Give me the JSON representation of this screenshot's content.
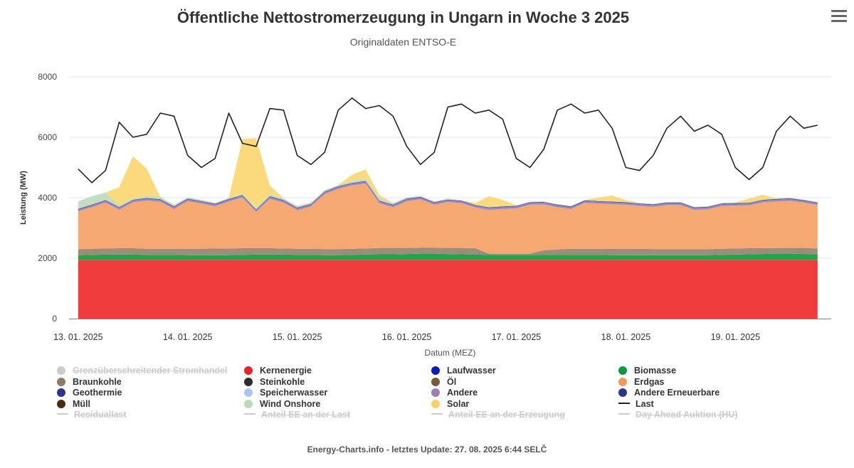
{
  "header": {
    "title": "Öffentliche Nettostromerzeugung in Ungarn in Woche 3 2025",
    "subtitle": "Originaldaten ENTSO-E"
  },
  "footer": {
    "text": "Energy-Charts.info - letztes Update: 27. 08. 2025 6:44 SELČ"
  },
  "legend": [
    {
      "label": "Grenzüberschreitender Stromhandel",
      "color": "#c8c8c8",
      "marker": "dot",
      "enabled": false
    },
    {
      "label": "Kernenergie",
      "color": "#e8242a",
      "marker": "dot",
      "enabled": true
    },
    {
      "label": "Laufwasser",
      "color": "#0a1bb8",
      "marker": "dot",
      "enabled": true
    },
    {
      "label": "Biomasse",
      "color": "#0b9a3a",
      "marker": "dot",
      "enabled": true
    },
    {
      "label": "Braunkohle",
      "color": "#8e7a66",
      "marker": "dot",
      "enabled": true
    },
    {
      "label": "Steinkohle",
      "color": "#2b2b2b",
      "marker": "dot",
      "enabled": true
    },
    {
      "label": "Öl",
      "color": "#7a5a3c",
      "marker": "dot",
      "enabled": true
    },
    {
      "label": "Erdgas",
      "color": "#f29a5c",
      "marker": "dot",
      "enabled": true
    },
    {
      "label": "Geothermie",
      "color": "#2c3588",
      "marker": "dot",
      "enabled": true
    },
    {
      "label": "Speicherwasser",
      "color": "#a9c4f5",
      "marker": "dot",
      "enabled": true
    },
    {
      "label": "Andere",
      "color": "#9a7fb0",
      "marker": "dot",
      "enabled": true
    },
    {
      "label": "Andere Erneuerbare",
      "color": "#2c3588",
      "marker": "dot",
      "enabled": true
    },
    {
      "label": "Müll",
      "color": "#4a2c10",
      "marker": "dot",
      "enabled": true
    },
    {
      "label": "Wind Onshore",
      "color": "#bcd9b8",
      "marker": "dot",
      "enabled": true
    },
    {
      "label": "Solar",
      "color": "#f7cf6b",
      "marker": "dot",
      "enabled": true
    },
    {
      "label": "Last",
      "color": "#222222",
      "marker": "line",
      "enabled": true
    },
    {
      "label": "Residuallast",
      "color": "#cccccc",
      "marker": "line",
      "enabled": false
    },
    {
      "label": "Anteil EE an der Last",
      "color": "#cccccc",
      "marker": "line",
      "enabled": false
    },
    {
      "label": "Anteil EE an der Erzeugung",
      "color": "#cccccc",
      "marker": "line",
      "enabled": false
    },
    {
      "label": "Day Ahead Auktion (HU)",
      "color": "#cccccc",
      "marker": "line",
      "enabled": false
    }
  ],
  "chart_data": {
    "type": "area",
    "title": "Öffentliche Nettostromerzeugung in Ungarn in Woche 3 2025",
    "subtitle": "Originaldaten ENTSO-E",
    "xlabel": "Datum (MEZ)",
    "ylabel": "Leistung (MW)",
    "ylim": [
      0,
      8000
    ],
    "yticks": [
      0,
      2000,
      4000,
      6000,
      8000
    ],
    "xticks": [
      "13. 01. 2025",
      "14. 01. 2025",
      "15. 01. 2025",
      "16. 01. 2025",
      "17. 01. 2025",
      "18. 01. 2025",
      "19. 01. 2025"
    ],
    "x_hours": [
      0,
      3,
      6,
      9,
      12,
      15,
      18,
      21,
      24,
      27,
      30,
      33,
      36,
      39,
      42,
      45,
      48,
      51,
      54,
      57,
      60,
      63,
      66,
      69,
      72,
      75,
      78,
      81,
      84,
      87,
      90,
      93,
      96,
      99,
      102,
      105,
      108,
      111,
      114,
      117,
      120,
      123,
      126,
      129,
      132,
      135,
      138,
      141,
      144,
      147,
      150,
      153,
      156,
      159,
      162
    ],
    "x_unit": "Stunden ab 13. 01. 2025 00:00",
    "grid": true,
    "series": [
      {
        "name": "Kernenergie",
        "color": "#f03c3c",
        "stack": true,
        "values": [
          1950,
          1950,
          1950,
          1950,
          1950,
          1950,
          1950,
          1950,
          1950,
          1950,
          1950,
          1950,
          1950,
          1950,
          1950,
          1950,
          1950,
          1950,
          1950,
          1950,
          1950,
          1950,
          1950,
          1950,
          1950,
          1950,
          1950,
          1950,
          1950,
          1950,
          1950,
          1950,
          1950,
          1950,
          1950,
          1950,
          1950,
          1950,
          1950,
          1950,
          1950,
          1950,
          1950,
          1950,
          1950,
          1950,
          1950,
          1950,
          1950,
          1950,
          1950,
          1950,
          1950,
          1950,
          1950
        ]
      },
      {
        "name": "Biomasse",
        "color": "#20a64a",
        "stack": true,
        "values": [
          150,
          160,
          170,
          170,
          170,
          160,
          160,
          160,
          150,
          150,
          150,
          150,
          160,
          170,
          170,
          170,
          160,
          160,
          150,
          150,
          160,
          170,
          180,
          180,
          190,
          200,
          200,
          190,
          180,
          170,
          160,
          160,
          160,
          160,
          160,
          160,
          160,
          160,
          160,
          150,
          150,
          150,
          150,
          150,
          150,
          150,
          150,
          160,
          170,
          180,
          190,
          200,
          200,
          190,
          180
        ]
      },
      {
        "name": "Braunkohle",
        "color": "#9c8c7c",
        "stack": true,
        "values": [
          200,
          200,
          200,
          210,
          210,
          200,
          200,
          200,
          210,
          210,
          220,
          220,
          220,
          210,
          210,
          200,
          200,
          200,
          200,
          200,
          200,
          200,
          210,
          210,
          200,
          200,
          200,
          200,
          210,
          210,
          40,
          40,
          40,
          40,
          150,
          180,
          200,
          200,
          200,
          210,
          210,
          210,
          200,
          200,
          200,
          200,
          200,
          200,
          200,
          200,
          190,
          190,
          190,
          200,
          190
        ]
      },
      {
        "name": "Erdgas",
        "color": "#f6a873",
        "stack": true,
        "values": [
          1250,
          1380,
          1520,
          1280,
          1520,
          1600,
          1560,
          1320,
          1580,
          1500,
          1400,
          1560,
          1680,
          1200,
          1640,
          1520,
          1280,
          1400,
          1820,
          2000,
          2100,
          2150,
          1480,
          1350,
          1550,
          1600,
          1420,
          1520,
          1480,
          1350,
          1450,
          1480,
          1500,
          1620,
          1520,
          1400,
          1320,
          1520,
          1500,
          1480,
          1460,
          1420,
          1400,
          1460,
          1460,
          1300,
          1320,
          1420,
          1420,
          1420,
          1520,
          1540,
          1560,
          1500,
          1440
        ]
      },
      {
        "name": "Andere",
        "color": "#9a86c0",
        "stack": true,
        "values": [
          60,
          60,
          60,
          60,
          60,
          60,
          60,
          60,
          60,
          60,
          60,
          60,
          60,
          60,
          60,
          60,
          60,
          60,
          60,
          60,
          60,
          60,
          60,
          60,
          60,
          60,
          60,
          60,
          60,
          60,
          60,
          60,
          60,
          60,
          60,
          60,
          60,
          60,
          60,
          60,
          60,
          60,
          60,
          60,
          60,
          60,
          60,
          60,
          60,
          60,
          60,
          60,
          60,
          60,
          60
        ]
      },
      {
        "name": "Andere Erneuerbare",
        "color": "#3b3f8f",
        "stack": true,
        "values": [
          20,
          20,
          20,
          20,
          20,
          20,
          20,
          20,
          20,
          20,
          20,
          20,
          20,
          20,
          20,
          20,
          20,
          20,
          20,
          20,
          20,
          20,
          20,
          20,
          20,
          20,
          20,
          20,
          20,
          20,
          20,
          20,
          20,
          20,
          20,
          20,
          20,
          20,
          20,
          20,
          20,
          20,
          20,
          20,
          20,
          20,
          20,
          20,
          20,
          20,
          20,
          20,
          20,
          20,
          20
        ]
      },
      {
        "name": "Wind Onshore",
        "color": "#c4dcc0",
        "stack": true,
        "values": [
          250,
          280,
          250,
          60,
          40,
          80,
          80,
          60,
          40,
          40,
          30,
          30,
          50,
          60,
          60,
          60,
          60,
          50,
          50,
          40,
          70,
          90,
          90,
          60,
          40,
          30,
          30,
          30,
          20,
          20,
          20,
          20,
          20,
          20,
          20,
          20,
          20,
          20,
          20,
          20,
          20,
          20,
          20,
          20,
          20,
          20,
          20,
          20,
          20,
          20,
          20,
          20,
          20,
          20,
          20
        ]
      },
      {
        "name": "Solar",
        "color": "#fbd97d",
        "stack": true,
        "values": [
          0,
          0,
          0,
          600,
          1400,
          900,
          0,
          0,
          0,
          0,
          0,
          0,
          1800,
          2300,
          300,
          0,
          0,
          0,
          0,
          0,
          200,
          300,
          100,
          0,
          0,
          0,
          0,
          0,
          0,
          50,
          350,
          200,
          0,
          0,
          0,
          0,
          0,
          0,
          100,
          180,
          50,
          0,
          0,
          0,
          0,
          0,
          0,
          0,
          0,
          120,
          150,
          0,
          0,
          0,
          0
        ]
      },
      {
        "name": "Last",
        "color": "#222222",
        "stack": false,
        "values": [
          4950,
          4500,
          4900,
          6500,
          6000,
          6100,
          6800,
          6700,
          5400,
          5000,
          5300,
          6800,
          5800,
          5700,
          6950,
          6900,
          5400,
          5100,
          5500,
          6900,
          7300,
          6950,
          7050,
          6700,
          5700,
          5100,
          5500,
          7000,
          7100,
          6800,
          6900,
          6600,
          5300,
          5000,
          5600,
          6900,
          7100,
          6800,
          6900,
          6300,
          5000,
          4900,
          5400,
          6300,
          6700,
          6200,
          6400,
          6100,
          5000,
          4600,
          5000,
          6200,
          6700,
          6300,
          6400
        ]
      }
    ]
  }
}
